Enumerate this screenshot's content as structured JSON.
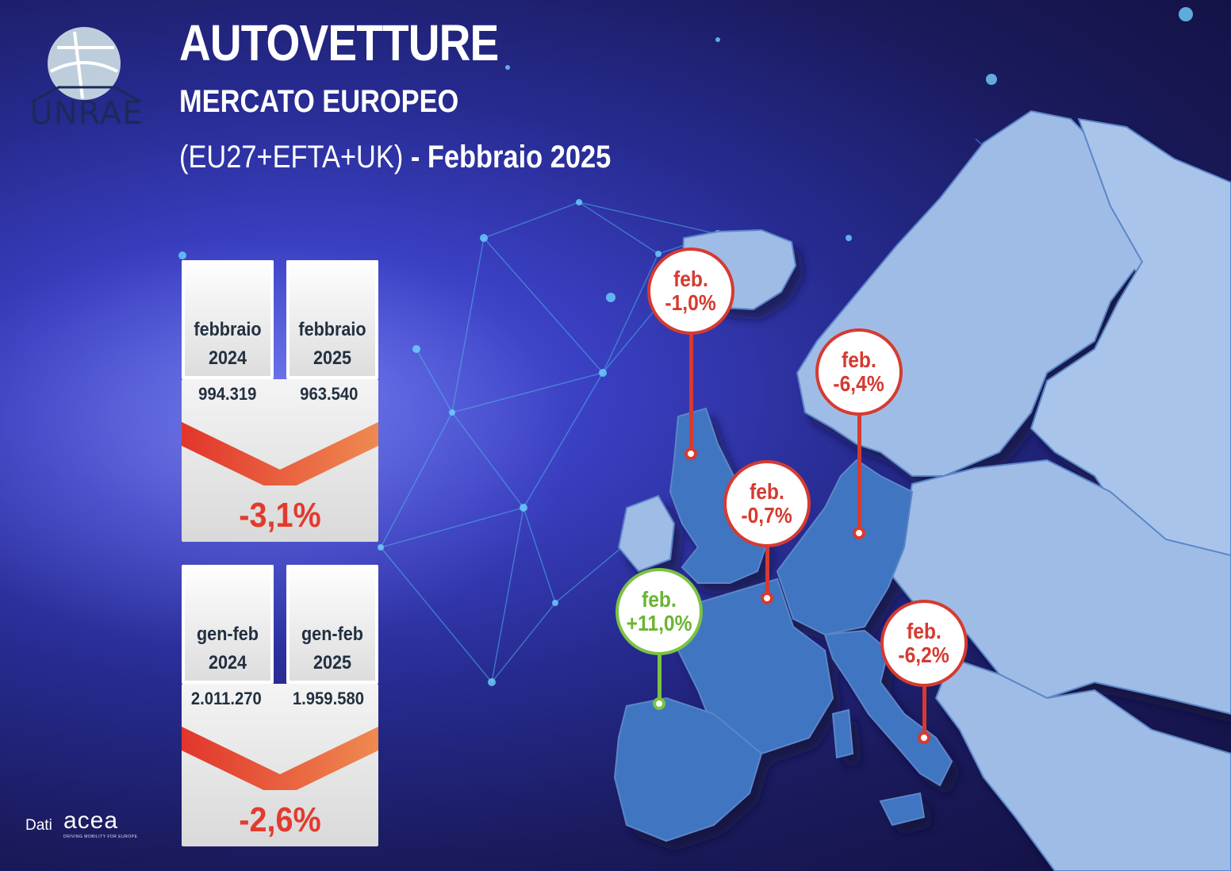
{
  "logo": {
    "text": "UNRAE"
  },
  "header": {
    "title": "AUTOVETTURE",
    "subtitle": "MERCATO EUROPEO",
    "scope": "(EU27+EFTA+UK)",
    "period": "- Febbraio 2025"
  },
  "month_card": {
    "col1_label_l1": "febbraio",
    "col1_label_l2": "2024",
    "col2_label_l1": "febbraio",
    "col2_label_l2": "2025",
    "value_2024": "994.319",
    "value_2025": "963.540",
    "change": "-3,1%"
  },
  "ytd_card": {
    "col1_label_l1": "gen-feb",
    "col1_label_l2": "2024",
    "col2_label_l1": "gen-feb",
    "col2_label_l2": "2025",
    "value_2024": "2.011.270",
    "value_2025": "1.959.580",
    "change": "-2,6%"
  },
  "pins": {
    "uk": {
      "label": "feb.",
      "value": "-1,0%"
    },
    "germany": {
      "label": "feb.",
      "value": "-6,4%"
    },
    "france": {
      "label": "feb.",
      "value": "-0,7%"
    },
    "spain": {
      "label": "feb.",
      "value": "+11,0%"
    },
    "italy": {
      "label": "feb.",
      "value": "-6,2%"
    }
  },
  "colors": {
    "negative": "#d63a30",
    "positive": "#7cc242",
    "map_land": "#9fbce6",
    "map_highlight": "#3f74c2"
  },
  "footer": {
    "source_label": "Dati",
    "source_brand": "acea",
    "source_tagline": "DRIVING MOBILITY FOR EUROPE"
  }
}
